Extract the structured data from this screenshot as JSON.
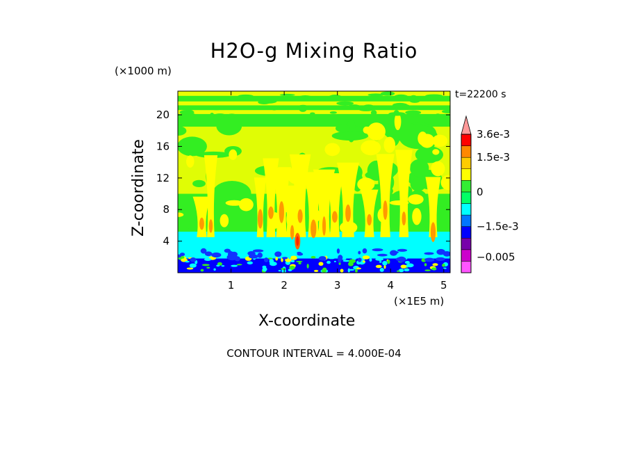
{
  "chart_data": {
    "type": "heatmap",
    "title": "H2O-g Mixing Ratio",
    "xlabel": "X-coordinate",
    "ylabel": "Z-coordinate",
    "x_unit": "(×1E5 m)",
    "y_unit": "(×1000 m)",
    "time_label": "t=22200 s",
    "contour_interval": "CONTOUR INTERVAL = 4.000E-04",
    "xlim": [
      0,
      5.12
    ],
    "ylim": [
      0,
      23
    ],
    "x_ticks": [
      "1",
      "2",
      "3",
      "4",
      "5"
    ],
    "x_tick_values": [
      1,
      2,
      3,
      4,
      5
    ],
    "y_ticks": [
      "4",
      "8",
      "12",
      "16",
      "20"
    ],
    "y_tick_values": [
      4,
      8,
      12,
      16,
      20
    ],
    "colorbar": {
      "labels": [
        "3.6e-3",
        "1.5e-3",
        "0",
        "−1.5e-3",
        "−0.005"
      ],
      "label_values": [
        0.0036,
        0.0015,
        0,
        -0.0015,
        -0.005
      ],
      "levels": [
        {
          "color": "#ff55ff",
          "upper": -0.005
        },
        {
          "color": "#cc00cc",
          "upper": -0.0035
        },
        {
          "color": "#7700aa",
          "upper": -0.0023
        },
        {
          "color": "#0000ff",
          "upper": -0.0015
        },
        {
          "color": "#0077ff",
          "upper": -0.0008
        },
        {
          "color": "#00ffff",
          "upper": -0.0004
        },
        {
          "color": "#00ff66",
          "upper": 0.0
        },
        {
          "color": "#33ee33",
          "upper": 0.0004
        },
        {
          "color": "#ffff00",
          "upper": 0.0008
        },
        {
          "color": "#ffcc00",
          "upper": 0.0015
        },
        {
          "color": "#ff8800",
          "upper": 0.0023
        },
        {
          "color": "#ff0000",
          "upper": 0.0036
        },
        {
          "color": "#ff9999",
          "upper": "max"
        }
      ]
    },
    "field_regions": [
      {
        "z_range": [
          0,
          1.5
        ],
        "dominant": "#0000ff",
        "note": "low-level blue layer with green/yellow patches"
      },
      {
        "z_range": [
          1.5,
          5.0
        ],
        "dominant": "#00ffff",
        "note": "cyan layer"
      },
      {
        "z_range": [
          5.0,
          19.5
        ],
        "dominant": "#00ee33",
        "note": "green background with yellow plumes"
      },
      {
        "z_range": [
          19.5,
          23
        ],
        "dominant": "#00ee33",
        "note": "banded yellow/green stripes"
      }
    ],
    "plumes_x": [
      0.45,
      0.62,
      1.55,
      1.75,
      1.95,
      2.15,
      2.3,
      2.55,
      2.75,
      2.95,
      3.2,
      3.6,
      3.9,
      4.25,
      4.8
    ],
    "max_region": {
      "x": 2.25,
      "z": 4,
      "note": "red core near X≈2.25"
    }
  }
}
